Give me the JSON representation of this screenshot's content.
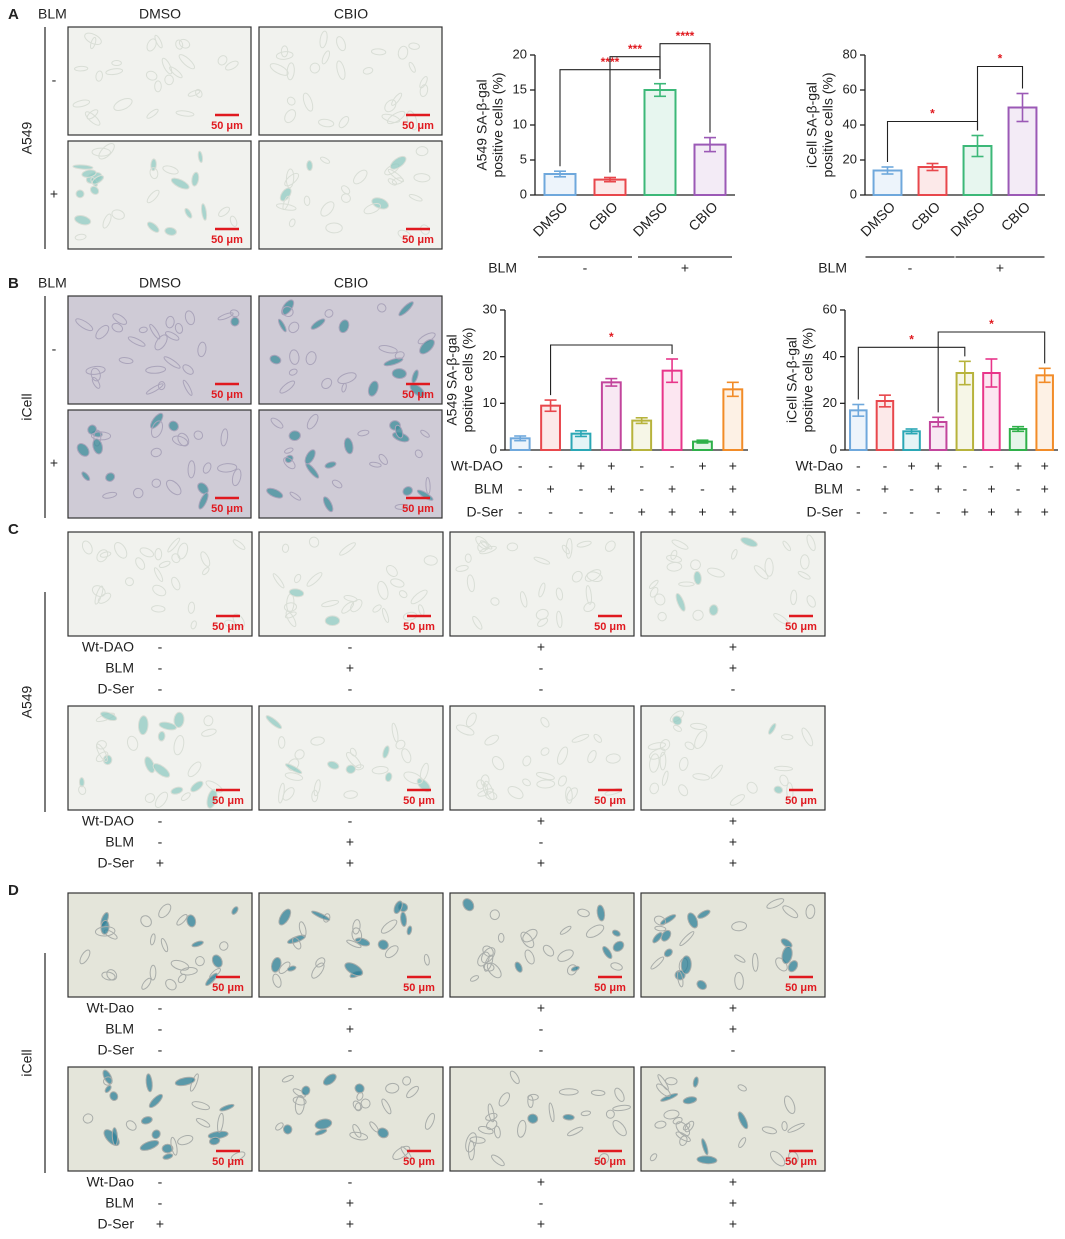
{
  "scale_bar": "50 μm",
  "panels": {
    "A": {
      "label": "A",
      "treatment": "BLM",
      "columns": [
        "DMSO",
        "CBIO"
      ],
      "cell_line": "A549",
      "rows": [
        "-",
        "+"
      ]
    },
    "B": {
      "label": "B",
      "treatment": "BLM",
      "columns": [
        "DMSO",
        "CBIO"
      ],
      "cell_line": "iCell",
      "rows": [
        "-",
        "+"
      ]
    },
    "C": {
      "label": "C",
      "cell_line": "A549",
      "image_rows": [
        {
          "conditions": [
            {
              "name": "Wt-DAO",
              "values": [
                "-",
                "-",
                "+",
                "+"
              ]
            },
            {
              "name": "BLM",
              "values": [
                "-",
                "+",
                "-",
                "+"
              ]
            },
            {
              "name": "D-Ser",
              "values": [
                "-",
                "-",
                "-",
                "-"
              ]
            }
          ]
        },
        {
          "conditions": [
            {
              "name": "Wt-DAO",
              "values": [
                "-",
                "-",
                "+",
                "+"
              ]
            },
            {
              "name": "BLM",
              "values": [
                "-",
                "+",
                "-",
                "+"
              ]
            },
            {
              "name": "D-Ser",
              "values": [
                "+",
                "+",
                "+",
                "+"
              ]
            }
          ]
        }
      ]
    },
    "D": {
      "label": "D",
      "cell_line": "iCell",
      "image_rows": [
        {
          "conditions": [
            {
              "name": "Wt-Dao",
              "values": [
                "-",
                "-",
                "+",
                "+"
              ]
            },
            {
              "name": "BLM",
              "values": [
                "-",
                "+",
                "-",
                "+"
              ]
            },
            {
              "name": "D-Ser",
              "values": [
                "-",
                "-",
                "-",
                "-"
              ]
            }
          ]
        },
        {
          "conditions": [
            {
              "name": "Wt-Dao",
              "values": [
                "-",
                "-",
                "+",
                "+"
              ]
            },
            {
              "name": "BLM",
              "values": [
                "-",
                "+",
                "-",
                "+"
              ]
            },
            {
              "name": "D-Ser",
              "values": [
                "+",
                "+",
                "+",
                "+"
              ]
            }
          ]
        }
      ]
    }
  },
  "chart_data": [
    {
      "type": "bar",
      "ylabel": [
        "A549 SA-β-gal",
        "positive cells (%)"
      ],
      "categories": [
        "DMSO",
        "CBIO",
        "DMSO",
        "CBIO"
      ],
      "values": [
        3.0,
        2.2,
        15.0,
        7.2
      ],
      "errors": [
        0.4,
        0.3,
        0.9,
        1.0
      ],
      "colors": [
        "#6fa8dc",
        "#e8474c",
        "#3cb878",
        "#9b59b6"
      ],
      "ylim": [
        0,
        20
      ],
      "yticks": [
        0,
        5,
        10,
        15,
        20
      ],
      "group_row": {
        "name": "BLM",
        "labels": [
          "-",
          "+"
        ]
      },
      "comparisons": [
        {
          "from": 0,
          "to": 2,
          "label": "****"
        },
        {
          "from": 1,
          "to": 2,
          "label": "***"
        },
        {
          "from": 2,
          "to": 3,
          "label": "****"
        }
      ]
    },
    {
      "type": "bar",
      "ylabel": [
        "iCell SA-β-gal",
        "positive cells (%)"
      ],
      "categories": [
        "DMSO",
        "CBIO",
        "DMSO",
        "CBIO"
      ],
      "values": [
        14,
        16,
        28,
        50
      ],
      "errors": [
        2,
        2,
        6,
        8
      ],
      "colors": [
        "#6fa8dc",
        "#e8474c",
        "#3cb878",
        "#9b59b6"
      ],
      "ylim": [
        0,
        80
      ],
      "yticks": [
        0,
        20,
        40,
        60,
        80
      ],
      "group_row": {
        "name": "BLM",
        "labels": [
          "-",
          "+"
        ]
      },
      "comparisons": [
        {
          "from": 0,
          "to": 2,
          "label": "*"
        },
        {
          "from": 2,
          "to": 3,
          "label": "*"
        }
      ]
    },
    {
      "type": "bar",
      "ylabel": [
        "A549 SA-β-gal",
        "positive cells (%)"
      ],
      "values": [
        2.5,
        9.5,
        3.5,
        14.5,
        6.3,
        17,
        1.8,
        13
      ],
      "errors": [
        0.5,
        1.2,
        0.6,
        0.8,
        0.6,
        2.5,
        0.3,
        1.5
      ],
      "colors": [
        "#6fa8dc",
        "#e8474c",
        "#2aa7b5",
        "#c2459c",
        "#b7b33c",
        "#e8358a",
        "#2fb04a",
        "#f28c28"
      ],
      "ylim": [
        0,
        30
      ],
      "yticks": [
        0,
        10,
        20,
        30
      ],
      "conditions": [
        {
          "name": "Wt-DAO",
          "values": [
            "-",
            "-",
            "+",
            "+",
            "-",
            "-",
            "+",
            "+"
          ]
        },
        {
          "name": "BLM",
          "values": [
            "-",
            "+",
            "-",
            "+",
            "-",
            "+",
            "-",
            "+"
          ]
        },
        {
          "name": "D-Ser",
          "values": [
            "-",
            "-",
            "-",
            "-",
            "+",
            "+",
            "+",
            "+"
          ]
        }
      ],
      "comparisons": [
        {
          "from": 1,
          "to": 5,
          "label": "*"
        }
      ]
    },
    {
      "type": "bar",
      "ylabel": [
        "iCell SA-β-gal",
        "positive cells (%)"
      ],
      "values": [
        17,
        21,
        8,
        12,
        33,
        33,
        9,
        32
      ],
      "errors": [
        2.5,
        2.5,
        1,
        2,
        5,
        6,
        1,
        3
      ],
      "colors": [
        "#6fa8dc",
        "#e8474c",
        "#2aa7b5",
        "#c2459c",
        "#b7b33c",
        "#e8358a",
        "#2fb04a",
        "#f28c28"
      ],
      "ylim": [
        0,
        60
      ],
      "yticks": [
        0,
        20,
        40,
        60
      ],
      "conditions": [
        {
          "name": "Wt-Dao",
          "values": [
            "-",
            "-",
            "+",
            "+",
            "-",
            "-",
            "+",
            "+"
          ]
        },
        {
          "name": "BLM",
          "values": [
            "-",
            "+",
            "-",
            "+",
            "-",
            "+",
            "-",
            "+"
          ]
        },
        {
          "name": "D-Ser",
          "values": [
            "-",
            "-",
            "-",
            "-",
            "+",
            "+",
            "+",
            "+"
          ]
        }
      ],
      "comparisons": [
        {
          "from": 0,
          "to": 4,
          "label": "*"
        },
        {
          "from": 3,
          "to": 7,
          "label": "*"
        }
      ]
    }
  ]
}
